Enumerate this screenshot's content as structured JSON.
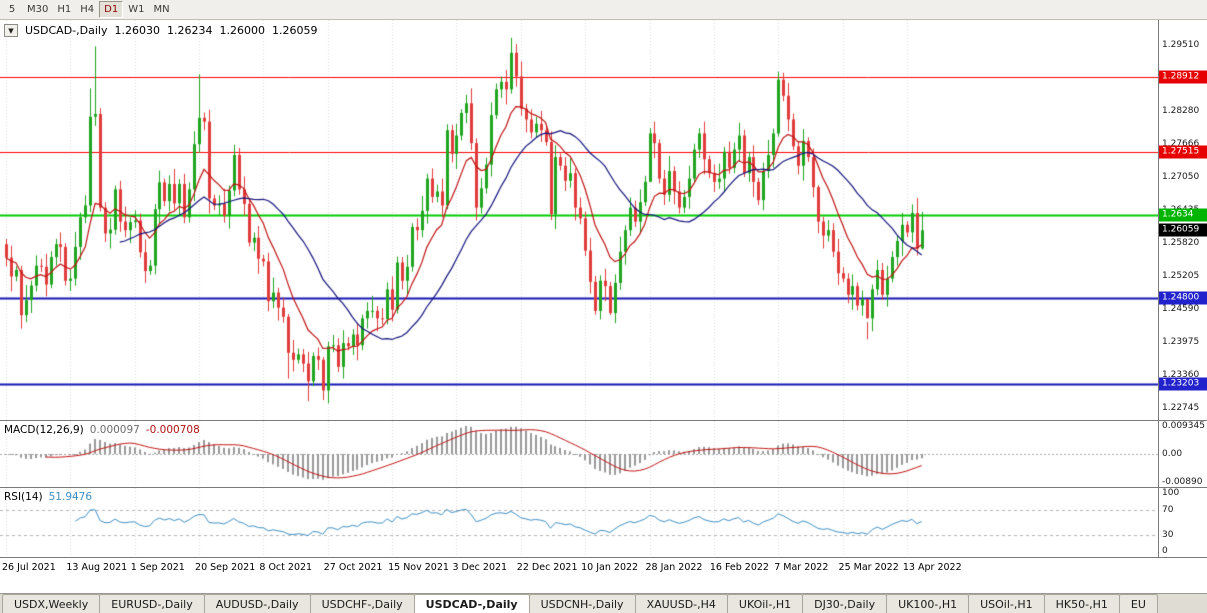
{
  "toolbar": {
    "periods": [
      {
        "label": "5",
        "active": false
      },
      {
        "label": "M30",
        "active": false
      },
      {
        "label": "H1",
        "active": false
      },
      {
        "label": "H4",
        "active": false
      },
      {
        "label": "D1",
        "active": true
      },
      {
        "label": "W1",
        "active": false
      },
      {
        "label": "MN",
        "active": false
      }
    ]
  },
  "header": {
    "symbol": "USDCAD-,Daily",
    "open": "1.26030",
    "high": "1.26234",
    "low": "1.26000",
    "close": "1.26059",
    "dropdown_icon": "▼"
  },
  "macd": {
    "label": "MACD(12,26,9)",
    "value_main": "0.000097",
    "value_signal": "-0.000708"
  },
  "rsi": {
    "label": "RSI(14)",
    "value": "51.9476"
  },
  "axes": {
    "price_ticks": [
      "1.29510",
      "1.28280",
      "1.27666",
      "1.27050",
      "1.26435",
      "1.25820",
      "1.25205",
      "1.24590",
      "1.23975",
      "1.23360",
      "1.22745"
    ],
    "price_tags": [
      {
        "label": "1.28912",
        "value": 1.28912,
        "color": "#E60000"
      },
      {
        "label": "1.27515",
        "value": 1.27515,
        "color": "#E60000"
      },
      {
        "label": "1.2634",
        "value": 1.2634,
        "color": "#00B400"
      },
      {
        "label": "1.26059",
        "value": 1.26059,
        "color": "#000000"
      },
      {
        "label": "1.24800",
        "value": 1.248,
        "color": "#2222CC"
      },
      {
        "label": "1.23203",
        "value": 1.23203,
        "color": "#2222CC"
      }
    ],
    "macd_ticks": [
      {
        "label": "0.009345",
        "value": 0.009345
      },
      {
        "label": "0.00",
        "value": 0
      },
      {
        "label": "-0.00890",
        "value": -0.0089
      }
    ],
    "rsi_ticks": [
      {
        "label": "100",
        "value": 100
      },
      {
        "label": "70",
        "value": 70
      },
      {
        "label": "30",
        "value": 30
      },
      {
        "label": "0",
        "value": 0
      }
    ]
  },
  "timeline": [
    {
      "label": "26 Jul 2021",
      "index": 0
    },
    {
      "label": "13 Aug 2021",
      "index": 13
    },
    {
      "label": "1 Sep 2021",
      "index": 26
    },
    {
      "label": "20 Sep 2021",
      "index": 39
    },
    {
      "label": "8 Oct 2021",
      "index": 52
    },
    {
      "label": "27 Oct 2021",
      "index": 65
    },
    {
      "label": "15 Nov 2021",
      "index": 78
    },
    {
      "label": "3 Dec 2021",
      "index": 91
    },
    {
      "label": "22 Dec 2021",
      "index": 104
    },
    {
      "label": "10 Jan 2022",
      "index": 117
    },
    {
      "label": "28 Jan 2022",
      "index": 130
    },
    {
      "label": "16 Feb 2022",
      "index": 143
    },
    {
      "label": "7 Mar 2022",
      "index": 156
    },
    {
      "label": "25 Mar 2022",
      "index": 169
    },
    {
      "label": "13 Apr 2022",
      "index": 182
    }
  ],
  "bottom_tabs": [
    {
      "label": "USDX,Weekly",
      "selected": false
    },
    {
      "label": "EURUSD-,Daily",
      "selected": false
    },
    {
      "label": "AUDUSD-,Daily",
      "selected": false
    },
    {
      "label": "USDCHF-,Daily",
      "selected": false
    },
    {
      "label": "USDCAD-,Daily",
      "selected": true
    },
    {
      "label": "USDCNH-,Daily",
      "selected": false
    },
    {
      "label": "XAUUSD-,H4",
      "selected": false
    },
    {
      "label": "UKOil-,H1",
      "selected": false
    },
    {
      "label": "DJ30-,Daily",
      "selected": false
    },
    {
      "label": "UK100-,H1",
      "selected": false
    },
    {
      "label": "USOil-,H1",
      "selected": false
    },
    {
      "label": "HK50-,H1",
      "selected": false
    },
    {
      "label": "EU",
      "selected": false
    }
  ],
  "chart_data": {
    "type": "candlestick",
    "symbol": "USDCAD",
    "period": "Daily",
    "ylim": [
      1.2253,
      1.2997
    ],
    "first_open": 1.258,
    "closes": [
      1.2555,
      1.252,
      1.2532,
      1.2448,
      1.2476,
      1.2503,
      1.254,
      1.2538,
      1.2505,
      1.2556,
      1.258,
      1.2575,
      1.2512,
      1.2516,
      1.2575,
      1.263,
      1.2652,
      1.2817,
      1.2822,
      1.2648,
      1.26,
      1.2607,
      1.2682,
      1.2622,
      1.2606,
      1.2621,
      1.2624,
      1.2565,
      1.253,
      1.254,
      1.2645,
      1.2695,
      1.266,
      1.2692,
      1.2656,
      1.2692,
      1.263,
      1.2682,
      1.2766,
      1.2815,
      1.2808,
      1.2665,
      1.2652,
      1.2655,
      1.2633,
      1.268,
      1.2746,
      1.2682,
      1.2655,
      1.2583,
      1.2592,
      1.2553,
      1.2548,
      1.2474,
      1.249,
      1.2462,
      1.2445,
      1.2378,
      1.2365,
      1.2375,
      1.2358,
      1.2325,
      1.2372,
      1.2365,
      1.2308,
      1.239,
      1.2392,
      1.2352,
      1.2396,
      1.239,
      1.2412,
      1.2392,
      1.2442,
      1.2456,
      1.2456,
      1.2442,
      1.2441,
      1.2496,
      1.2458,
      1.2546,
      1.2512,
      1.2538,
      1.2612,
      1.2606,
      1.2642,
      1.2702,
      1.2668,
      1.2678,
      1.2652,
      1.2792,
      1.2748,
      1.2782,
      1.2824,
      1.2842,
      1.2768,
      1.2648,
      1.2684,
      1.2728,
      1.282,
      1.2868,
      1.2882,
      1.2868,
      1.2936,
      1.2892,
      1.2832,
      1.2812,
      1.2788,
      1.2804,
      1.2792,
      1.277,
      1.2636,
      1.2742,
      1.2726,
      1.2698,
      1.2712,
      1.2648,
      1.2628,
      1.2568,
      1.251,
      1.2456,
      1.2512,
      1.2502,
      1.2452,
      1.2508,
      1.2566,
      1.2606,
      1.2648,
      1.2622,
      1.2658,
      1.2696,
      1.2786,
      1.2768,
      1.2702,
      1.2672,
      1.2716,
      1.2678,
      1.2648,
      1.2668,
      1.2702,
      1.2756,
      1.2786,
      1.2738,
      1.2712,
      1.2696,
      1.2702,
      1.2752,
      1.2722,
      1.2756,
      1.2782,
      1.2712,
      1.2742,
      1.2696,
      1.2662,
      1.2716,
      1.2746,
      1.2786,
      1.2886,
      1.2856,
      1.2812,
      1.2762,
      1.2726,
      1.2772,
      1.2742,
      1.2686,
      1.2622,
      1.2596,
      1.2606,
      1.2566,
      1.2526,
      1.2516,
      1.2486,
      1.2502,
      1.2466,
      1.2478,
      1.2442,
      1.2496,
      1.2532,
      1.2486,
      1.2516,
      1.2556,
      1.2586,
      1.2616,
      1.2602,
      1.2638,
      1.2572,
      1.26059
    ],
    "wick_pattern": [
      0.001,
      0.0022,
      0.0007,
      0.0016,
      0.0028,
      0.0009,
      0.0019,
      0.0013,
      0.0024,
      0.0011
    ],
    "wick_overrides": {
      "3": [
        1.254,
        1.2423
      ],
      "17": [
        1.287,
        1.264
      ],
      "18": [
        1.2948,
        1.28
      ],
      "39": [
        1.2896,
        1.275
      ],
      "57": [
        1.245,
        1.233
      ],
      "61": [
        1.238,
        1.2288
      ],
      "64": [
        1.237,
        1.229
      ],
      "102": [
        1.2964,
        1.286
      ],
      "110": [
        1.279,
        1.2625
      ],
      "122": [
        1.251,
        1.2448
      ],
      "130": [
        1.2796,
        1.27
      ],
      "156": [
        1.2901,
        1.278
      ],
      "164": [
        1.269,
        1.26
      ],
      "174": [
        1.2435,
        1.2403
      ],
      "185": [
        1.264,
        1.257
      ]
    },
    "colors": {
      "up": "#1FA51F",
      "down": "#E13B3B",
      "macd_hist": "#9A9A9A",
      "macd_signal": "#C01414",
      "rsi": "#3E8EC4",
      "grid": "#DCDCDC"
    },
    "hlines": [
      {
        "value": 1.28912,
        "color": "#FF0000",
        "width": 1
      },
      {
        "value": 1.27515,
        "color": "#FF0000",
        "width": 1
      },
      {
        "value": 1.2634,
        "color": "#00CC00",
        "width": 2
      },
      {
        "value": 1.248,
        "color": "#1414B4",
        "width": 2
      },
      {
        "value": 1.23203,
        "color": "#1414B4",
        "width": 2
      }
    ],
    "moving_averages": [
      {
        "type": "ema",
        "period": 10,
        "color": "#C01414"
      },
      {
        "type": "sma",
        "period": 24,
        "color": "#15157E"
      }
    ],
    "indicators": {
      "macd": {
        "fast": 12,
        "slow": 26,
        "signal": 9
      },
      "rsi": {
        "period": 14
      }
    },
    "macd_scale": 0.0105
  }
}
